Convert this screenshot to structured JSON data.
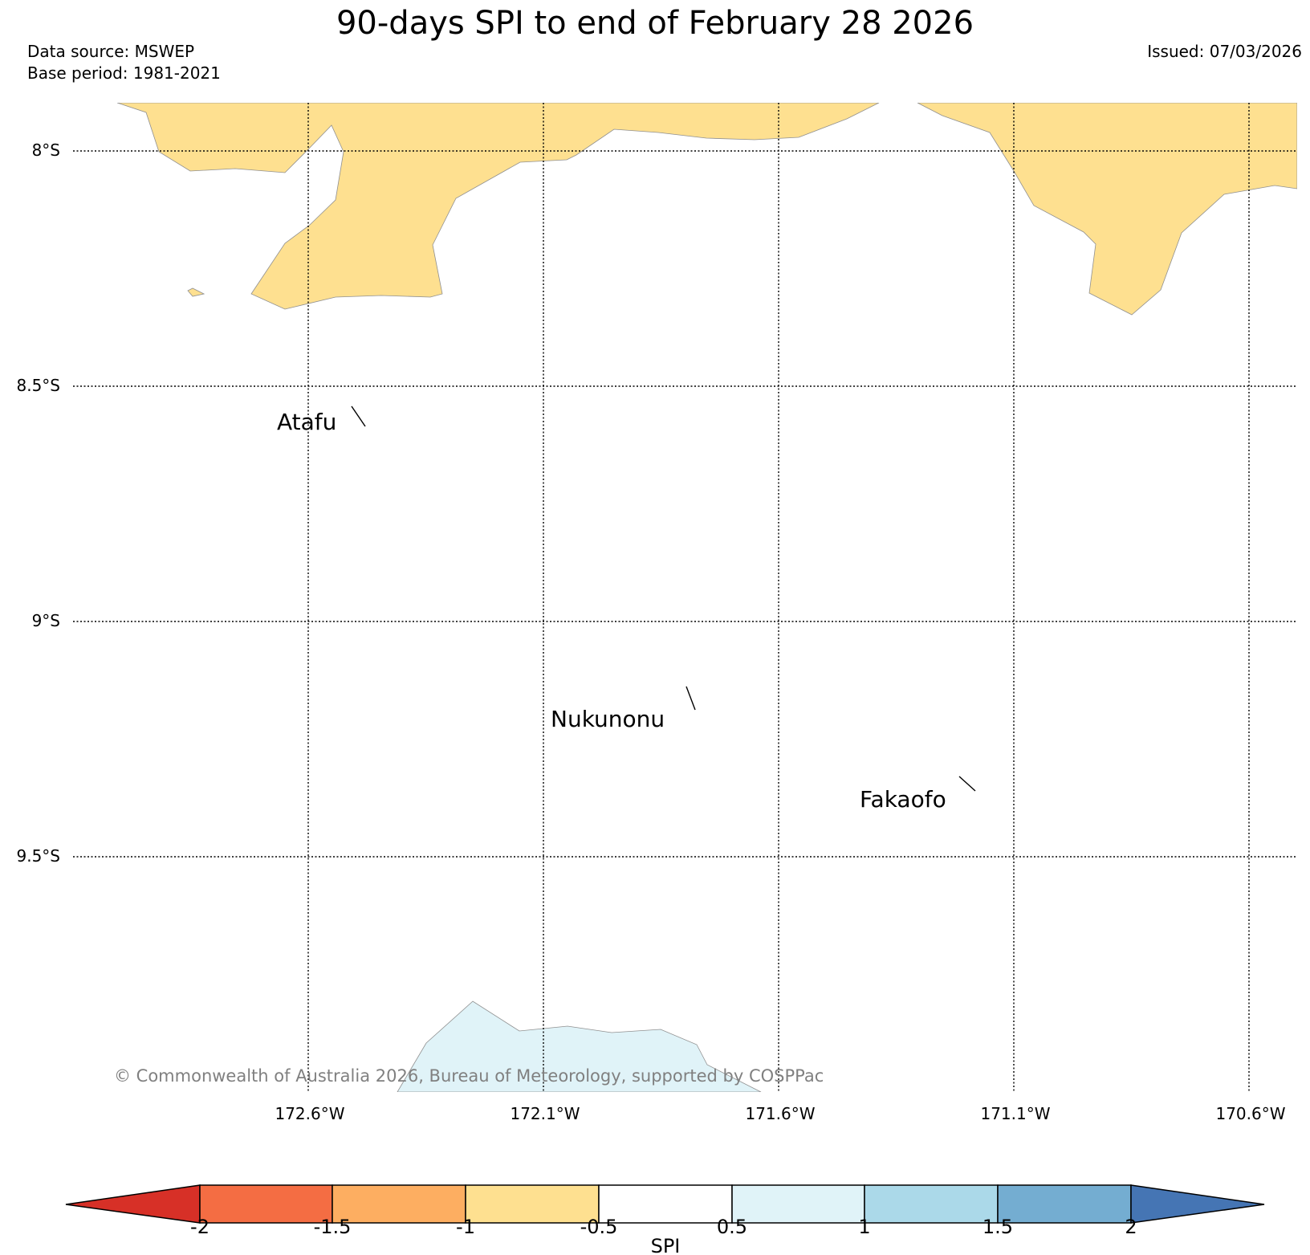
{
  "title": "90-days SPI to end of February 28 2026",
  "data_source": "Data source: MSWEP",
  "base_period": "Base period: 1981-2021",
  "issued": "Issued: 07/03/2026",
  "latitude_labels": [
    "8°S",
    "8.5°S",
    "9°S",
    "9.5°S"
  ],
  "longitude_labels": [
    "172.6°W",
    "172.1°W",
    "171.6°W",
    "171.1°W",
    "170.6°W"
  ],
  "places": [
    "Atafu",
    "Nukunonu",
    "Fakaofo"
  ],
  "copyright": "© Commonwealth of Australia 2026, Bureau of Meteorology, supported by COSPPac",
  "colorbar": {
    "label": "SPI",
    "ticks": [
      "-2",
      "-1.5",
      "-1",
      "-0.5",
      "0.5",
      "1",
      "1.5",
      "2"
    ],
    "colors": [
      "#d73027",
      "#f46d43",
      "#fdae61",
      "#fee090",
      "#ffffff",
      "#e0f3f8",
      "#abd9e9",
      "#74add1",
      "#4575b4"
    ]
  },
  "colors": {
    "dry_region": "#fee090",
    "wet_region": "#e0f3f8",
    "copyright_text": "#808080"
  }
}
